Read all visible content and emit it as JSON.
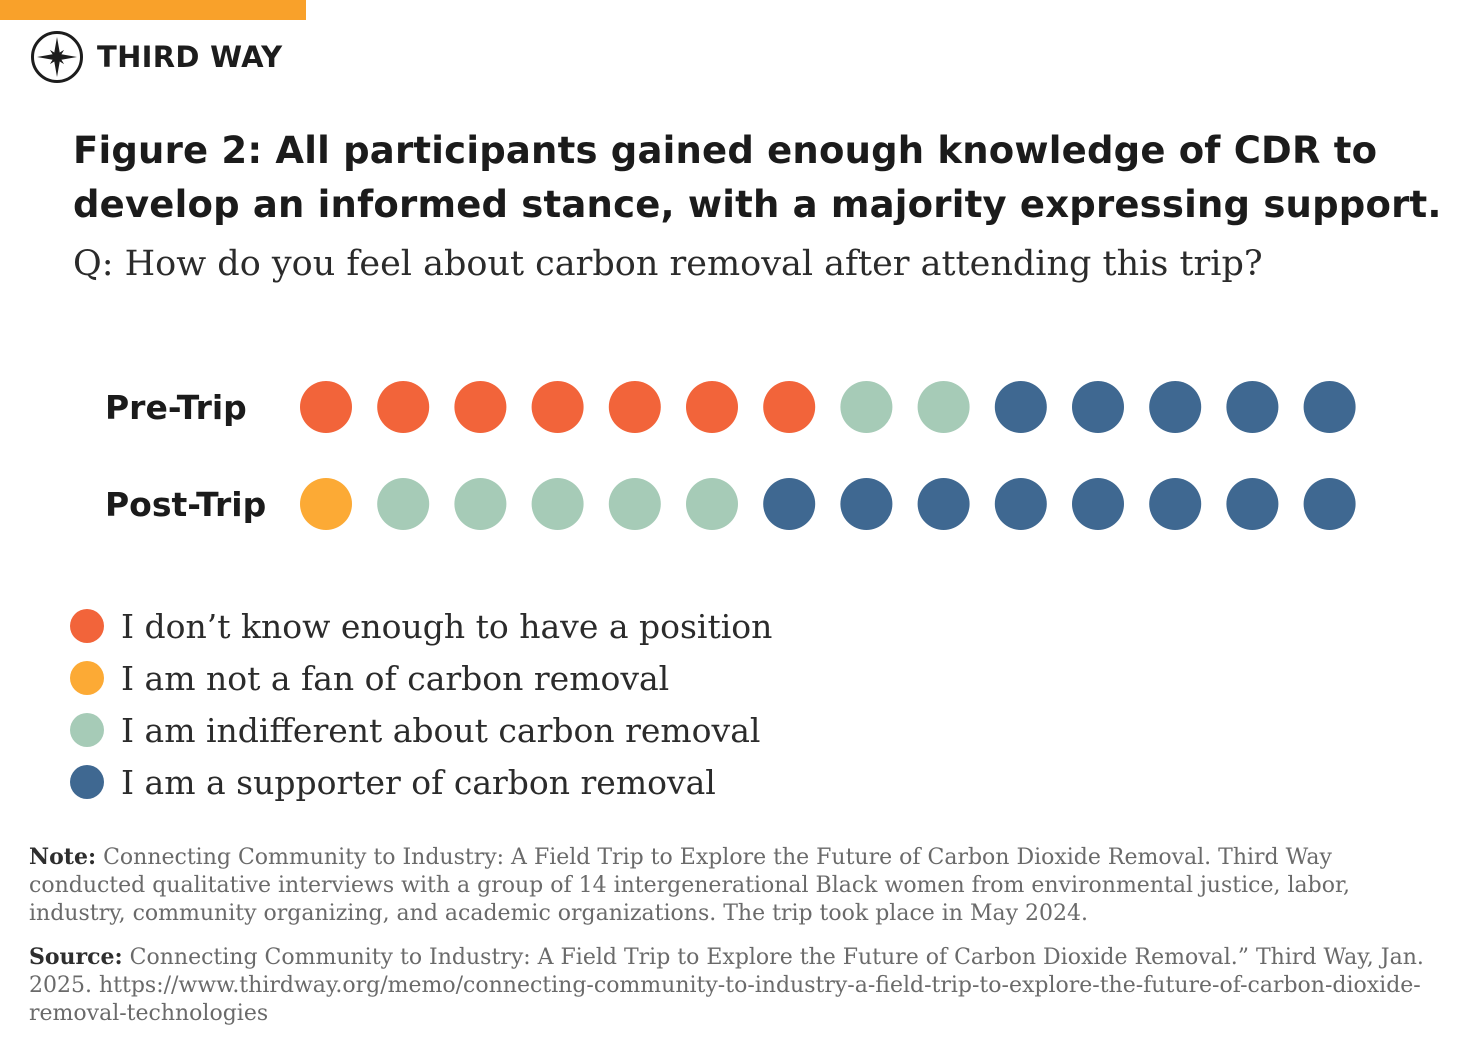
{
  "brand": {
    "name": "THIRD WAY",
    "logo_icon": "compass-star-icon"
  },
  "colors": {
    "accent_bar": "#f9a12a",
    "dont_know": "#f2643a",
    "not_a_fan": "#fcaa35",
    "indifferent": "#a6cbb7",
    "supporter": "#3f6891"
  },
  "title": "Figure 2: All participants gained enough knowledge of CDR to develop an informed stance, with a majority expressing support.",
  "question": "Q: How do you feel about carbon removal after attending this trip?",
  "chart_data": {
    "type": "dot-matrix",
    "title": "Figure 2: All participants gained enough knowledge of CDR to develop an informed stance, with a majority expressing support.",
    "unit": "participants",
    "categories": [
      "I don’t know enough to have a position",
      "I am not a fan of carbon removal",
      "I am indifferent about carbon removal",
      "I am a supporter of carbon removal"
    ],
    "rows": [
      {
        "label": "Pre-Trip",
        "counts": [
          7,
          0,
          2,
          5
        ]
      },
      {
        "label": "Post-Trip",
        "counts": [
          0,
          1,
          5,
          8
        ]
      }
    ],
    "total_per_row": 14
  },
  "legend": [
    {
      "label": "I don’t know enough to have a position",
      "color_key": "dont_know"
    },
    {
      "label": "I am not a fan of carbon removal",
      "color_key": "not_a_fan"
    },
    {
      "label": "I am indifferent about carbon removal",
      "color_key": "indifferent"
    },
    {
      "label": "I am a supporter of carbon removal",
      "color_key": "supporter"
    }
  ],
  "note": {
    "label": "Note:",
    "text": " Connecting Community to Industry: A Field Trip to Explore the Future of Carbon Dioxide Removal. Third Way conducted qualitative interviews with a group of 14 intergenerational Black women from environmental justice, labor, industry, community organizing, and academic organizations. The trip took place in May 2024."
  },
  "source": {
    "label": "Source:",
    "text": " Connecting Community to Industry: A Field Trip to Explore the Future of Carbon Dioxide Removal.” Third Way, Jan. 2025. https://www.thirdway.org/memo/connecting-community-to-industry-a-field-trip-to-explore-the-future-of-carbon-dioxide-removal-technologies"
  }
}
